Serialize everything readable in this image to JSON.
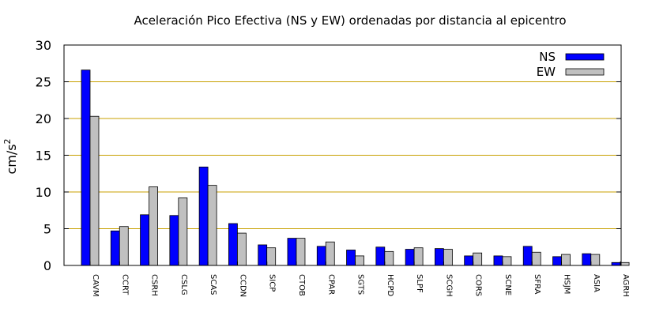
{
  "chart_data": {
    "type": "bar",
    "title": "Aceleración Pico Efectiva (NS y EW) ordenadas por distancia al epicentro",
    "xlabel": "",
    "ylabel": "cm/s",
    "ylabel_superscript": "2",
    "ylim": [
      0,
      30
    ],
    "yticks": [
      0,
      5,
      10,
      15,
      20,
      25,
      30
    ],
    "grid": "horizontal",
    "legend_position": "top-right",
    "categories": [
      "CAVM",
      "CCRT",
      "CSRH",
      "CSLG",
      "SCAS",
      "CCDN",
      "SICP",
      "CTOB",
      "CPAR",
      "SGTS",
      "HCPD",
      "SLPF",
      "SCGH",
      "CORS",
      "SCNE",
      "SFRA",
      "HSJM",
      "ASIA",
      "AGRH"
    ],
    "series": [
      {
        "name": "NS",
        "color": "#0000ff",
        "values": [
          26.6,
          4.7,
          6.9,
          6.8,
          13.4,
          5.7,
          2.8,
          3.7,
          2.6,
          2.1,
          2.5,
          2.2,
          2.3,
          1.3,
          1.3,
          2.6,
          1.2,
          1.6,
          0.4
        ]
      },
      {
        "name": "EW",
        "color": "#c0c0c0",
        "values": [
          20.3,
          5.3,
          10.7,
          9.2,
          10.9,
          4.4,
          2.4,
          3.7,
          3.2,
          1.3,
          1.9,
          2.4,
          2.2,
          1.7,
          1.2,
          1.8,
          1.5,
          1.5,
          0.4
        ]
      }
    ],
    "colors": {
      "grid": "#c8a000",
      "axis": "#000000"
    }
  }
}
